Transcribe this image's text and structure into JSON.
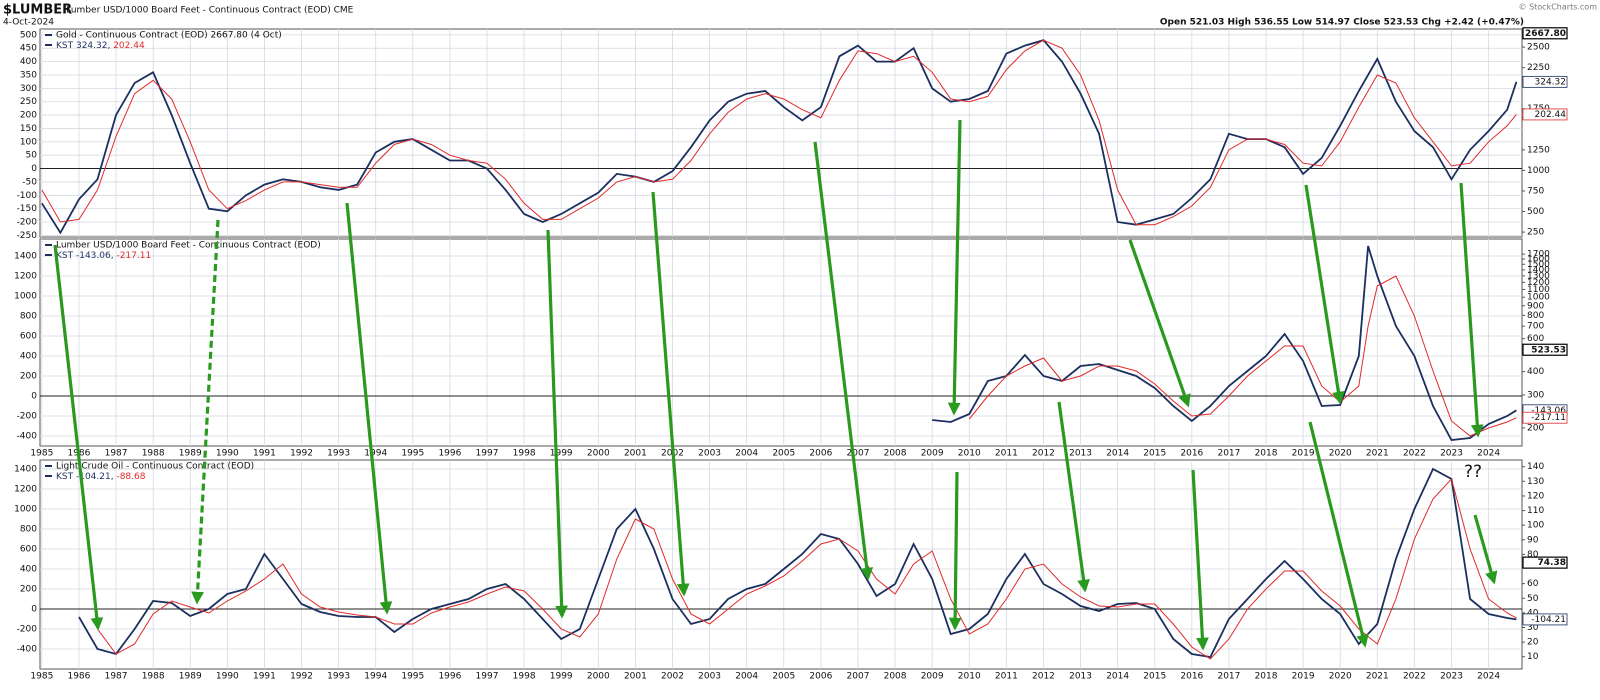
{
  "header": {
    "symbol": "$LUMBER",
    "description": "Lumber USD/1000 Board Feet - Continuous Contract (EOD) CME",
    "date": "4-Oct-2024",
    "quote": "Open 521.03 High 536.55 Low 514.97 Close 523.53 Chg +2.42 (+0.47%)",
    "credit": "© StockCharts.com"
  },
  "chart_data": [
    {
      "type": "line",
      "title": "Gold - Continuous Contract (EOD) 2667.80 (4 Oct)",
      "grid": true,
      "show_xtick_labels": false,
      "xlim": [
        1984.95,
        2024.9
      ],
      "xticks": [
        1985,
        1986,
        1987,
        1988,
        1989,
        1990,
        1991,
        1992,
        1993,
        1994,
        1995,
        1996,
        1997,
        1998,
        1999,
        2000,
        2001,
        2002,
        2003,
        2004,
        2005,
        2006,
        2007,
        2008,
        2009,
        2010,
        2011,
        2012,
        2013,
        2014,
        2015,
        2016,
        2017,
        2018,
        2019,
        2020,
        2021,
        2022,
        2023,
        2024
      ],
      "ylim": [
        -256,
        522
      ],
      "yticks": [
        -250,
        -200,
        -150,
        -100,
        -50,
        0,
        50,
        100,
        150,
        200,
        250,
        300,
        350,
        400,
        450,
        500
      ],
      "y2lim": [
        190,
        2720
      ],
      "y2ticks": [
        250,
        500,
        750,
        1000,
        1250,
        1750,
        2250,
        2500
      ],
      "x": [
        1985,
        1985.5,
        1986,
        1986.5,
        1987,
        1987.5,
        1988,
        1988.5,
        1989,
        1989.5,
        1990,
        1990.5,
        1991,
        1991.5,
        1992,
        1992.5,
        1993,
        1993.5,
        1994,
        1994.5,
        1995,
        1995.5,
        1996,
        1996.5,
        1997,
        1997.5,
        1998,
        1998.5,
        1999,
        1999.5,
        2000,
        2000.5,
        2001,
        2001.5,
        2002,
        2002.5,
        2003,
        2003.5,
        2004,
        2004.5,
        2005,
        2005.5,
        2006,
        2006.5,
        2007,
        2007.5,
        2008,
        2008.5,
        2009,
        2009.5,
        2010,
        2010.5,
        2011,
        2011.5,
        2012,
        2012.5,
        2013,
        2013.5,
        2014,
        2014.5,
        2015,
        2015.5,
        2016,
        2016.5,
        2017,
        2017.5,
        2018,
        2018.5,
        2019,
        2019.5,
        2020,
        2020.5,
        2021,
        2021.5,
        2022,
        2022.5,
        2023,
        2023.5,
        2024,
        2024.5,
        2024.75
      ],
      "series": [
        {
          "name": "KST 324.32,",
          "color": "#1c2f5e",
          "values": [
            -130,
            -240,
            -115,
            -40,
            200,
            320,
            360,
            200,
            20,
            -150,
            -160,
            -100,
            -60,
            -40,
            -50,
            -70,
            -80,
            -60,
            60,
            100,
            110,
            70,
            30,
            30,
            0,
            -80,
            -170,
            -200,
            -170,
            -130,
            -90,
            -20,
            -30,
            -50,
            -10,
            80,
            180,
            250,
            280,
            290,
            230,
            180,
            230,
            420,
            460,
            400,
            400,
            450,
            300,
            250,
            260,
            290,
            430,
            460,
            480,
            400,
            280,
            130,
            -200,
            -210,
            -190,
            -170,
            -110,
            -40,
            130,
            110,
            110,
            80,
            -20,
            40,
            160,
            290,
            410,
            250,
            140,
            80,
            -40,
            70,
            140,
            220,
            324.32
          ]
        },
        {
          "name": "202.44",
          "color": "#e02a2a",
          "values": [
            -80,
            -200,
            -190,
            -80,
            120,
            280,
            330,
            260,
            100,
            -80,
            -150,
            -120,
            -80,
            -50,
            -50,
            -60,
            -70,
            -70,
            20,
            90,
            110,
            90,
            50,
            30,
            20,
            -40,
            -130,
            -190,
            -190,
            -150,
            -110,
            -50,
            -30,
            -50,
            -40,
            30,
            130,
            210,
            260,
            280,
            260,
            220,
            190,
            330,
            440,
            430,
            400,
            420,
            360,
            260,
            250,
            270,
            370,
            440,
            480,
            450,
            350,
            180,
            -80,
            -210,
            -210,
            -180,
            -140,
            -70,
            70,
            110,
            110,
            90,
            20,
            10,
            100,
            230,
            350,
            320,
            190,
            100,
            10,
            20,
            100,
            160,
            202.44
          ]
        }
      ],
      "tags": [
        {
          "value": 2667.8,
          "label": "2667.80",
          "axis": "y2",
          "color": "#000000"
        },
        {
          "value": 324.32,
          "label": "324.32",
          "axis": "y",
          "color": "#1c2f5e"
        },
        {
          "value": 202.44,
          "label": "202.44",
          "axis": "y",
          "color": "#e02a2a"
        }
      ]
    },
    {
      "type": "line",
      "title": "Lumber USD/1000 Board Feet - Continuous Contract (EOD)",
      "grid": true,
      "show_xtick_labels": true,
      "xlim": [
        1984.95,
        2024.9
      ],
      "xticks": [
        1985,
        1986,
        1987,
        1988,
        1989,
        1990,
        1991,
        1992,
        1993,
        1994,
        1995,
        1996,
        1997,
        1998,
        1999,
        2000,
        2001,
        2002,
        2003,
        2004,
        2005,
        2006,
        2007,
        2008,
        2009,
        2010,
        2011,
        2012,
        2013,
        2014,
        2015,
        2016,
        2017,
        2018,
        2019,
        2020,
        2021,
        2022,
        2023,
        2024
      ],
      "ylim": [
        -500,
        1570
      ],
      "yticks": [
        -400,
        -200,
        0,
        200,
        400,
        600,
        800,
        1000,
        1200,
        1400
      ],
      "y2lim": [
        160,
        2048
      ],
      "y2log": true,
      "y2ticks": [
        200,
        300,
        400,
        600,
        700,
        800,
        900,
        1000,
        1100,
        1200,
        1300,
        1400,
        1500,
        1600,
        1700
      ],
      "x": [
        2009,
        2009.5,
        2010,
        2010.5,
        2011,
        2011.5,
        2012,
        2012.5,
        2013,
        2013.5,
        2014,
        2014.5,
        2015,
        2015.5,
        2016,
        2016.5,
        2017,
        2017.5,
        2018,
        2018.5,
        2019,
        2019.5,
        2020,
        2020.5,
        2020.75,
        2021,
        2021.5,
        2022,
        2022.5,
        2023,
        2023.5,
        2024,
        2024.5,
        2024.75
      ],
      "series": [
        {
          "name": "KST -143.06,",
          "color": "#1c2f5e",
          "values": [
            -240,
            -260,
            -180,
            150,
            200,
            410,
            200,
            150,
            300,
            320,
            260,
            200,
            80,
            -100,
            -250,
            -100,
            100,
            250,
            400,
            620,
            350,
            -100,
            -90,
            400,
            1500,
            1200,
            700,
            400,
            -100,
            -440,
            -420,
            -280,
            -200,
            -143.06
          ]
        },
        {
          "name": "-217.11",
          "color": "#e02a2a",
          "values": [
            null,
            null,
            -230,
            0,
            200,
            300,
            380,
            150,
            200,
            300,
            300,
            250,
            120,
            -50,
            -200,
            -180,
            0,
            200,
            350,
            500,
            500,
            100,
            -60,
            100,
            700,
            1100,
            1200,
            800,
            250,
            -250,
            -400,
            -320,
            -260,
            -217.11
          ]
        }
      ],
      "tags": [
        {
          "value": 523.53,
          "label": "523.53",
          "axis": "y2",
          "color": "#000000"
        },
        {
          "value": -143.06,
          "label": "-143.06",
          "axis": "y",
          "color": "#1c2f5e"
        },
        {
          "value": -217.11,
          "label": "-217.11",
          "axis": "y",
          "color": "#e02a2a"
        }
      ]
    },
    {
      "type": "line",
      "title": "Light Crude Oil - Continuous Contract (EOD)",
      "grid": true,
      "show_xtick_labels": true,
      "annotation": "??",
      "xlim": [
        1984.95,
        2024.9
      ],
      "xticks": [
        1985,
        1986,
        1987,
        1988,
        1989,
        1990,
        1991,
        1992,
        1993,
        1994,
        1995,
        1996,
        1997,
        1998,
        1999,
        2000,
        2001,
        2002,
        2003,
        2004,
        2005,
        2006,
        2007,
        2008,
        2009,
        2010,
        2011,
        2012,
        2013,
        2014,
        2015,
        2016,
        2017,
        2018,
        2019,
        2020,
        2021,
        2022,
        2023,
        2024
      ],
      "ylim": [
        -600,
        1490
      ],
      "yticks": [
        -400,
        -200,
        0,
        200,
        400,
        600,
        800,
        1000,
        1200,
        1400
      ],
      "y2lim": [
        1.6,
        144.6
      ],
      "y2ticks": [
        10,
        20,
        30,
        40,
        50,
        60,
        80,
        90,
        100,
        110,
        120,
        130,
        140
      ],
      "x": [
        1986,
        1986.5,
        1987,
        1987.5,
        1988,
        1988.5,
        1989,
        1989.5,
        1990,
        1990.5,
        1991,
        1991.5,
        1992,
        1992.5,
        1993,
        1993.5,
        1994,
        1994.5,
        1995,
        1995.5,
        1996,
        1996.5,
        1997,
        1997.5,
        1998,
        1998.5,
        1999,
        1999.5,
        2000,
        2000.5,
        2001,
        2001.5,
        2002,
        2002.5,
        2003,
        2003.5,
        2004,
        2004.5,
        2005,
        2005.5,
        2006,
        2006.5,
        2007,
        2007.5,
        2008,
        2008.5,
        2009,
        2009.5,
        2010,
        2010.5,
        2011,
        2011.5,
        2012,
        2012.5,
        2013,
        2013.5,
        2014,
        2014.5,
        2015,
        2015.5,
        2016,
        2016.5,
        2017,
        2017.5,
        2018,
        2018.5,
        2019,
        2019.5,
        2020,
        2020.5,
        2021,
        2021.5,
        2022,
        2022.5,
        2023,
        2023.5,
        2024,
        2024.5,
        2024.75
      ],
      "series": [
        {
          "name": "KST -104.21,",
          "color": "#1c2f5e",
          "values": [
            -80,
            -400,
            -450,
            -200,
            80,
            60,
            -70,
            0,
            150,
            200,
            550,
            300,
            50,
            -30,
            -70,
            -80,
            -80,
            -230,
            -100,
            0,
            50,
            100,
            200,
            250,
            100,
            -100,
            -300,
            -200,
            300,
            800,
            1000,
            600,
            100,
            -150,
            -100,
            100,
            200,
            250,
            400,
            550,
            750,
            700,
            450,
            130,
            250,
            650,
            300,
            -250,
            -200,
            -50,
            300,
            550,
            250,
            150,
            30,
            -20,
            50,
            60,
            0,
            -300,
            -450,
            -480,
            -100,
            100,
            300,
            480,
            300,
            100,
            -50,
            -350,
            -150,
            500,
            1000,
            1400,
            1300,
            100,
            -50,
            -90,
            -104.21
          ]
        },
        {
          "name": "-88.68",
          "color": "#e02a2a",
          "values": [
            null,
            -200,
            -450,
            -350,
            -50,
            80,
            20,
            -40,
            80,
            180,
            300,
            450,
            150,
            20,
            -30,
            -60,
            -80,
            -150,
            -150,
            -40,
            20,
            70,
            150,
            220,
            180,
            0,
            -200,
            -280,
            -50,
            500,
            900,
            800,
            300,
            -50,
            -150,
            0,
            150,
            230,
            330,
            480,
            650,
            700,
            580,
            300,
            150,
            450,
            580,
            100,
            -250,
            -150,
            100,
            400,
            450,
            250,
            120,
            30,
            20,
            50,
            50,
            -150,
            -380,
            -500,
            -300,
            0,
            200,
            380,
            380,
            180,
            30,
            -200,
            -350,
            100,
            700,
            1100,
            1300,
            600,
            100,
            -40,
            -88.68
          ]
        }
      ],
      "tags": [
        {
          "value": 74.38,
          "label": "74.38",
          "axis": "y2",
          "color": "#000000"
        },
        {
          "value": -104.21,
          "label": "-104.21",
          "axis": "y",
          "color": "#1c2f5e"
        }
      ]
    }
  ]
}
